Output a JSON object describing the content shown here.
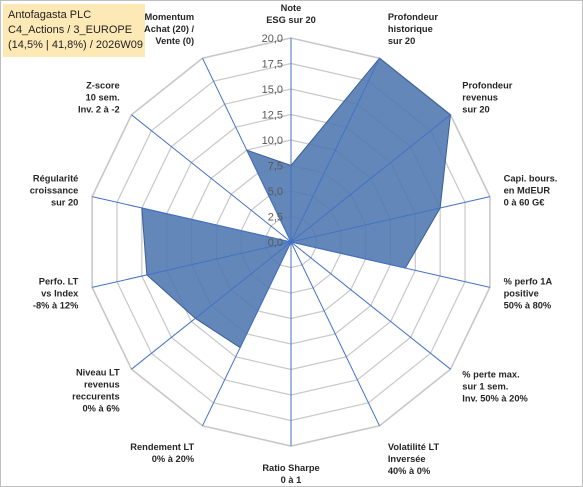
{
  "header": {
    "line1": "Antofagasta PLC",
    "line2": "C4_Actions / 3_EUROPE",
    "line3": "(14,5% | 41,8%) / 2026W09"
  },
  "chart_data": {
    "type": "radar",
    "r_range": [
      0,
      20
    ],
    "r_ticks": [
      "0,0",
      "2,5",
      "5,0",
      "7,5",
      "10,0",
      "12,5",
      "15,0",
      "17,5",
      "20,0"
    ],
    "grid": true,
    "series": [
      {
        "values": [
          7.5,
          20.0,
          20.0,
          15.0,
          11.5,
          0.0,
          0.0,
          0.0,
          11.5,
          12.0,
          14.5,
          15.0,
          0.0,
          10.0
        ]
      }
    ],
    "axes": [
      [
        "Note",
        "ESG sur 20"
      ],
      [
        "Profondeur",
        "historique",
        "sur 20"
      ],
      [
        "Profondeur",
        "revenus",
        "sur 20"
      ],
      [
        "Capi. bours.",
        "en MdEUR",
        "0 à 60 G€"
      ],
      [
        "% perfo 1A",
        "positive",
        "50% à 80%"
      ],
      [
        "% perte max.",
        "sur 1 sem.",
        "Inv. 50% à 20%"
      ],
      [
        "Volatilité LT",
        "Inversée",
        "40% à 0%"
      ],
      [
        "Ratio Sharpe",
        "0 à 1"
      ],
      [
        "Rendement LT",
        "0% à 20%"
      ],
      [
        "Niveau LT",
        "revenus",
        "reccurents",
        "0% à 6%"
      ],
      [
        "Perfo. LT",
        "vs Index",
        "-8% à 12%"
      ],
      [
        "Régularité",
        "croissance",
        "sur 20"
      ],
      [
        "Z-score",
        "10 sem.",
        "Inv. 2 à -2"
      ],
      [
        "Momentum",
        "Achat (20) /",
        "Vente (0)"
      ]
    ],
    "colors": {
      "fill": "#4f76b0",
      "stroke": "#3a5f96",
      "grid": "#c8c8c8",
      "axis": "#4472c4"
    }
  }
}
